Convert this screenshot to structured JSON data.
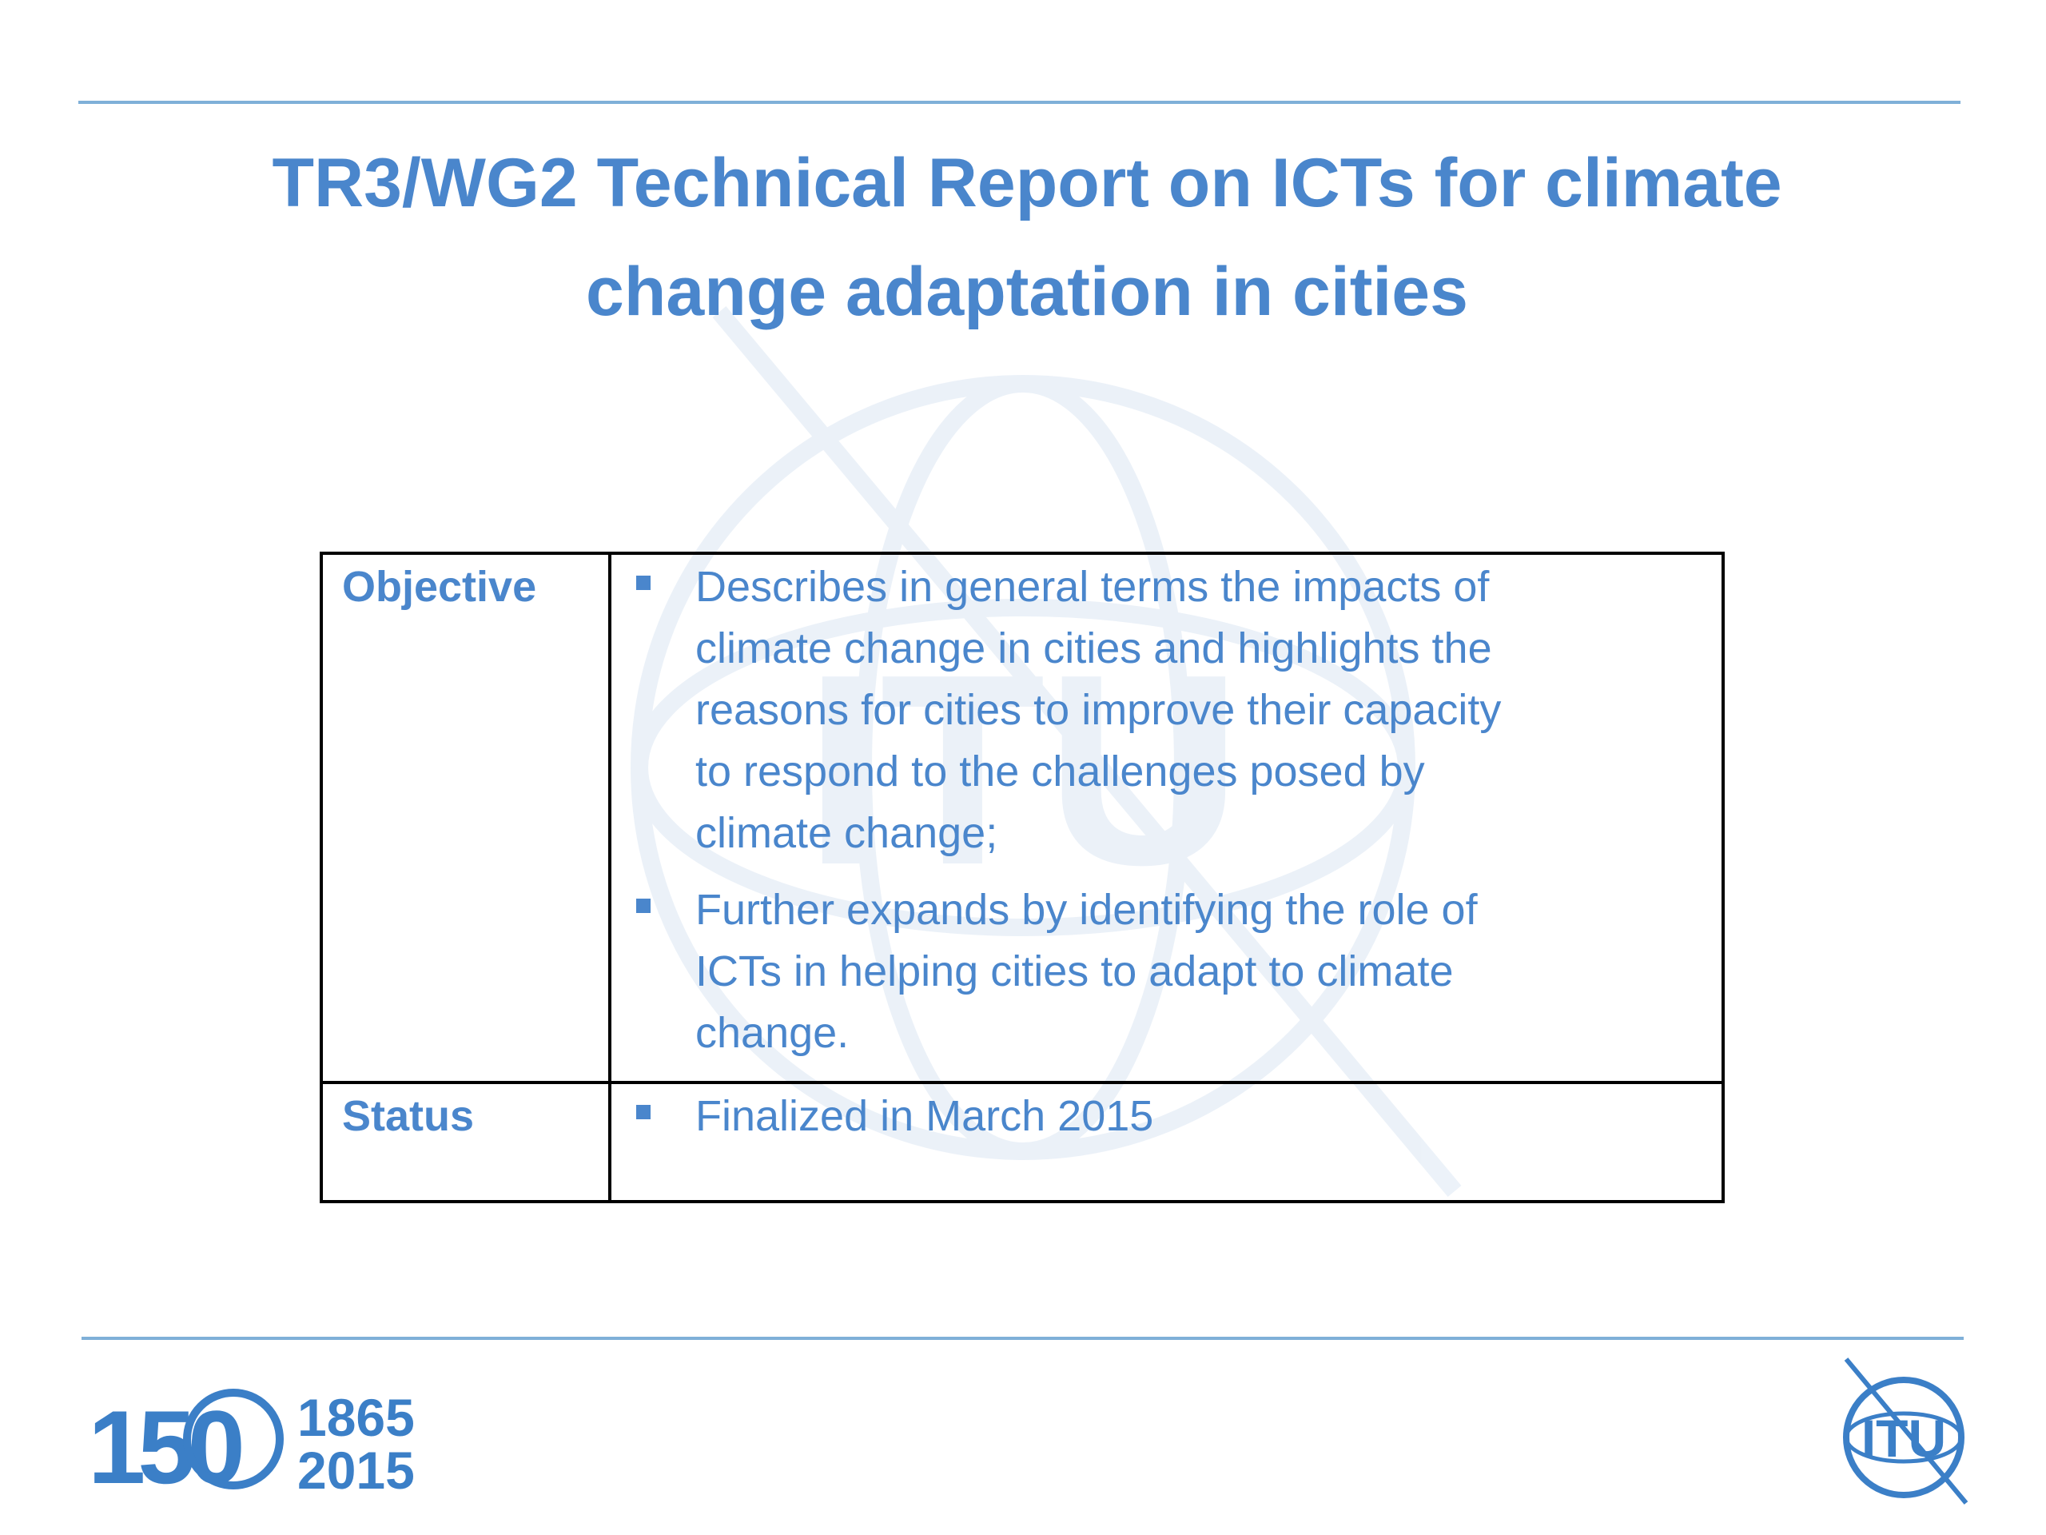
{
  "title": {
    "lines": [
      "TR3/WG2 Technical Report on ICTs for climate",
      "change adaptation in cities"
    ]
  },
  "table": {
    "rows": [
      {
        "label": "Objective",
        "bullets": [
          [
            "Describes in general terms the impacts of",
            "climate change in cities and highlights the",
            "reasons for cities to improve their capacity",
            "to respond to the challenges posed by",
            "climate change;"
          ],
          [
            "Further expands by identifying the role of",
            "ICTs in helping cities to adapt to climate",
            "change."
          ]
        ]
      },
      {
        "label": "Status",
        "bullets": [
          [
            "Finalized in March 2015"
          ]
        ]
      }
    ]
  },
  "footer": {
    "anniversary": "150",
    "years": [
      "1865",
      "2015"
    ],
    "logo_text": "ITU"
  }
}
